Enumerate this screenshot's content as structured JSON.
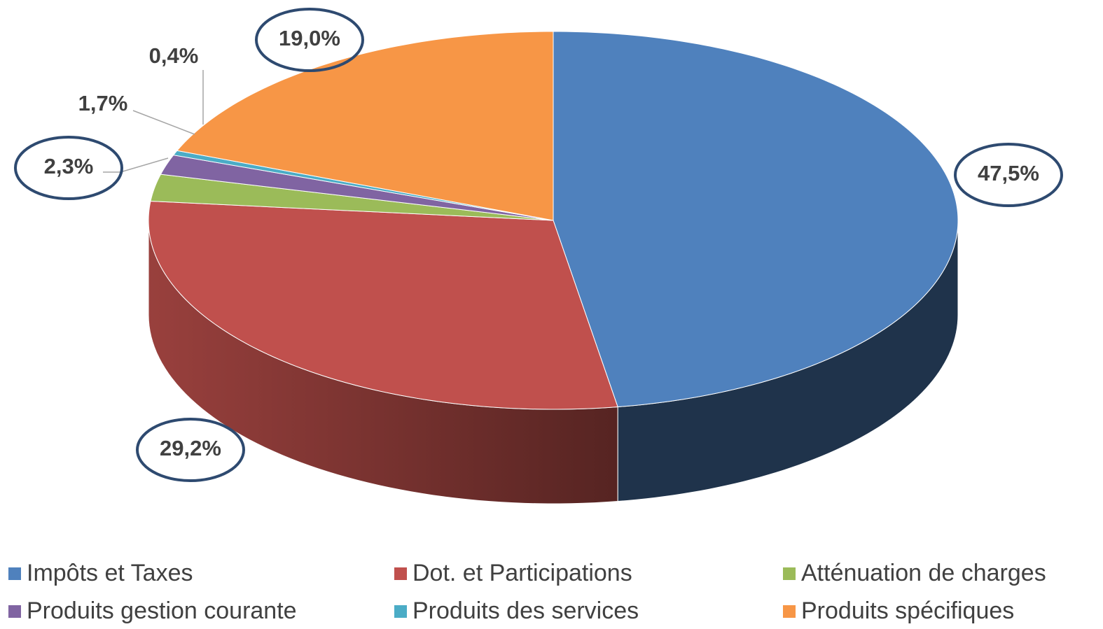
{
  "chart_data": {
    "type": "pie",
    "categories": [
      "Impôts et Taxes",
      "Dot. et Participations",
      "Atténuation de charges",
      "Produits gestion courante",
      "Produits des services",
      "Produits spécifiques"
    ],
    "values": [
      47.5,
      29.2,
      2.3,
      1.7,
      0.4,
      19.0
    ],
    "value_labels": [
      "47,5%",
      "29,2%",
      "2,3%",
      "1,7%",
      "0,4%",
      "19,0%"
    ],
    "colors": [
      "#4f81bd",
      "#c0504d",
      "#9bbb59",
      "#8064a2",
      "#4bacc6",
      "#f79646"
    ],
    "legend": "bottom"
  }
}
